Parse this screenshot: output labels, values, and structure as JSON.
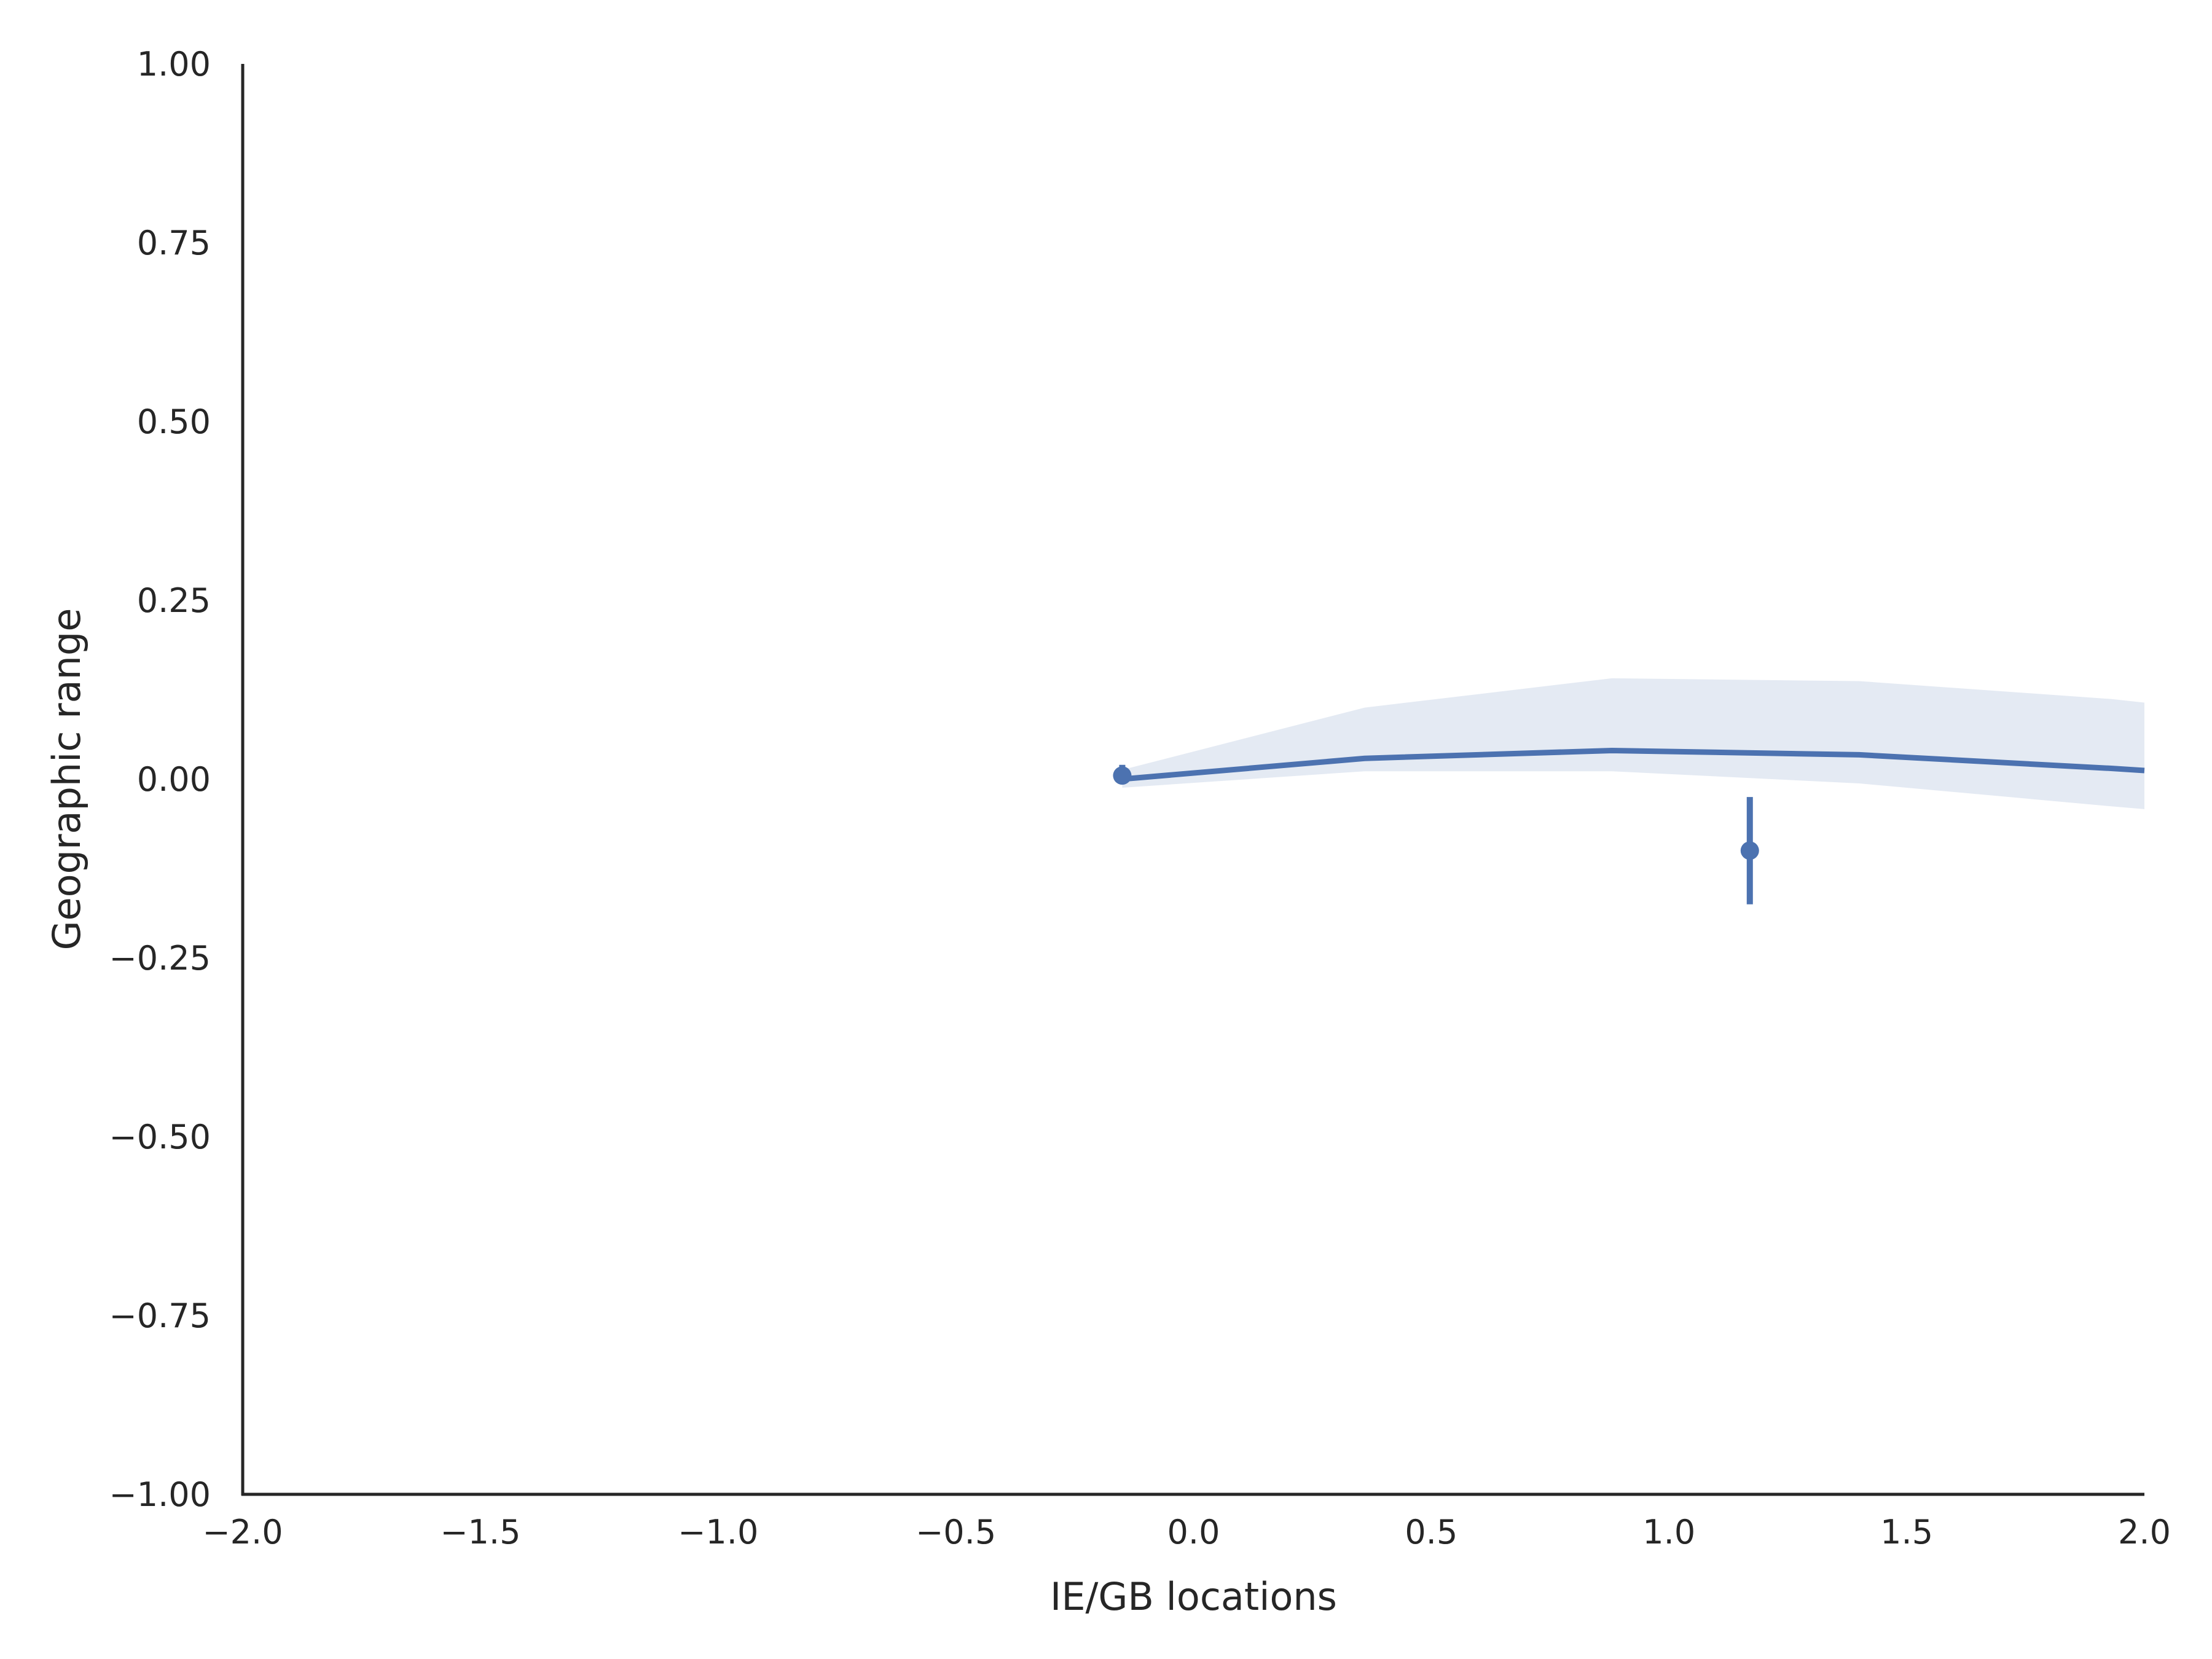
{
  "chart_data": {
    "type": "line",
    "title": "",
    "xlabel": "IE/GB locations",
    "ylabel": "Geographic range",
    "xlim": [
      -2.0,
      2.0
    ],
    "ylim": [
      -1.0,
      1.0
    ],
    "xticks": [
      "−2.0",
      "−1.5",
      "−1.0",
      "−0.5",
      "0.0",
      "0.5",
      "1.0",
      "1.5",
      "2.0"
    ],
    "yticks": [
      "1.00",
      "0.75",
      "0.50",
      "0.25",
      "0.00",
      "−0.25",
      "−0.50",
      "−0.75",
      "−1.00"
    ],
    "grid": false,
    "legend": "none",
    "colors": {
      "line": "#4c72b0",
      "band": "#4c72b0",
      "axis": "#262626"
    },
    "regression": {
      "x": [
        -0.15,
        0.36,
        0.88,
        1.4,
        1.93,
        2.0
      ],
      "y": [
        0.0,
        0.029,
        0.04,
        0.034,
        0.015,
        0.012
      ],
      "ci_lower": [
        -0.012,
        0.011,
        0.011,
        -0.006,
        -0.038,
        -0.042
      ],
      "ci_upper": [
        0.013,
        0.1,
        0.141,
        0.137,
        0.112,
        0.107
      ]
    },
    "points": [
      {
        "x": -0.15,
        "y": 0.005,
        "err_low": -0.005,
        "err_high": 0.02
      },
      {
        "x": 1.17,
        "y": -0.1,
        "err_low": -0.175,
        "err_high": -0.025
      }
    ]
  }
}
